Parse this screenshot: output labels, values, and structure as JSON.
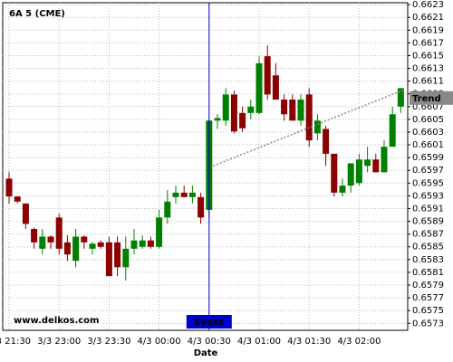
{
  "chart_data": {
    "type": "candlestick",
    "title": "6A 5 (CME)",
    "x_label": "Date",
    "watermark": "www.delkos.com",
    "categories": [
      "3/3 21:30",
      null,
      null,
      null,
      null,
      null,
      "3/3 23:00",
      null,
      null,
      null,
      null,
      null,
      "3/3 23:30",
      null,
      null,
      null,
      null,
      null,
      "4/3 00:00",
      null,
      null,
      null,
      null,
      null,
      "4/3 00:30",
      null,
      null,
      null,
      null,
      null,
      "4/3 01:00",
      null,
      null,
      null,
      null,
      null,
      "4/3 01:30",
      null,
      null,
      null,
      null,
      null,
      "4/3 02:00",
      null,
      null,
      null,
      null,
      null
    ],
    "open": [
      0.65957,
      0.65929,
      0.65918,
      0.65878,
      0.65847,
      0.65866,
      0.65896,
      0.65857,
      0.65828,
      0.65866,
      0.65847,
      0.65857,
      0.65857,
      0.65857,
      0.65818,
      0.65847,
      0.6585,
      0.6586,
      0.6585,
      0.65896,
      0.65928,
      0.65935,
      0.65928,
      0.65928,
      0.65908,
      0.66048,
      0.66048,
      0.66089,
      0.6606,
      0.6606,
      0.6606,
      0.66149,
      0.66119,
      0.66081,
      0.66081,
      0.66048,
      0.66089,
      0.66028,
      0.66035,
      0.65996,
      0.65935,
      0.65946,
      0.6595,
      0.65977,
      0.65987,
      0.65967,
      0.66007,
      0.6607
    ],
    "high": [
      0.65967,
      0.65929,
      0.65918,
      0.6588,
      0.65878,
      0.65868,
      0.65902,
      0.65868,
      0.65878,
      0.65868,
      0.65857,
      0.6586,
      0.65866,
      0.65866,
      0.65866,
      0.65878,
      0.65868,
      0.65866,
      0.65908,
      0.65939,
      0.65946,
      0.65946,
      0.65946,
      0.65935,
      0.66048,
      0.66058,
      0.66099,
      0.66095,
      0.6607,
      0.66081,
      0.66149,
      0.66166,
      0.66138,
      0.66089,
      0.66089,
      0.66089,
      0.66099,
      0.66058,
      0.6604,
      0.65996,
      0.65957,
      0.65981,
      0.65996,
      0.66007,
      0.65996,
      0.66017,
      0.6607,
      0.66099
    ],
    "low": [
      0.65918,
      0.65918,
      0.65878,
      0.65847,
      0.65838,
      0.65847,
      0.65838,
      0.65828,
      0.65818,
      0.65847,
      0.65838,
      0.65847,
      0.65804,
      0.65804,
      0.65797,
      0.65838,
      0.65847,
      0.65847,
      0.65847,
      0.65886,
      0.65918,
      0.65928,
      0.65918,
      0.65886,
      0.65896,
      0.66035,
      0.6604,
      0.66028,
      0.6603,
      0.6605,
      0.66058,
      0.66081,
      0.66081,
      0.66048,
      0.66048,
      0.6604,
      0.66007,
      0.66017,
      0.65977,
      0.65929,
      0.65929,
      0.65935,
      0.65946,
      0.65967,
      0.65967,
      0.65967,
      0.66007,
      0.6606
    ],
    "close": [
      0.65929,
      0.65921,
      0.65886,
      0.65857,
      0.65866,
      0.65857,
      0.65847,
      0.65838,
      0.65866,
      0.65857,
      0.65855,
      0.6585,
      0.65804,
      0.65818,
      0.65847,
      0.6586,
      0.6586,
      0.6585,
      0.65896,
      0.65921,
      0.65935,
      0.65928,
      0.65935,
      0.65896,
      0.66048,
      0.66052,
      0.66089,
      0.66031,
      0.66036,
      0.6607,
      0.66138,
      0.66089,
      0.66081,
      0.66058,
      0.66048,
      0.66081,
      0.66017,
      0.66048,
      0.65996,
      0.65935,
      0.65946,
      0.65981,
      0.65987,
      0.65987,
      0.65967,
      0.66007,
      0.66058,
      0.66099
    ],
    "up_color": "#008000",
    "down_color": "#8b0000",
    "ylim": [
      0.65719,
      0.66233
    ],
    "yticks": [
      0.6573,
      0.6575,
      0.6577,
      0.6579,
      0.6581,
      0.6583,
      0.6585,
      0.6587,
      0.6589,
      0.6591,
      0.6593,
      0.6595,
      0.6597,
      0.6599,
      0.6601,
      0.6603,
      0.6605,
      0.6607,
      0.6609,
      0.6611,
      0.6613,
      0.6615,
      0.6617,
      0.6619,
      0.6621,
      0.6623
    ],
    "grid": true,
    "event": {
      "label": "Event",
      "x": 24,
      "color": "#0000cc"
    },
    "trend": {
      "label": "Trend",
      "x": [
        24.5,
        47.5
      ],
      "y": [
        0.65977,
        0.66097
      ],
      "color": "#888888"
    }
  }
}
